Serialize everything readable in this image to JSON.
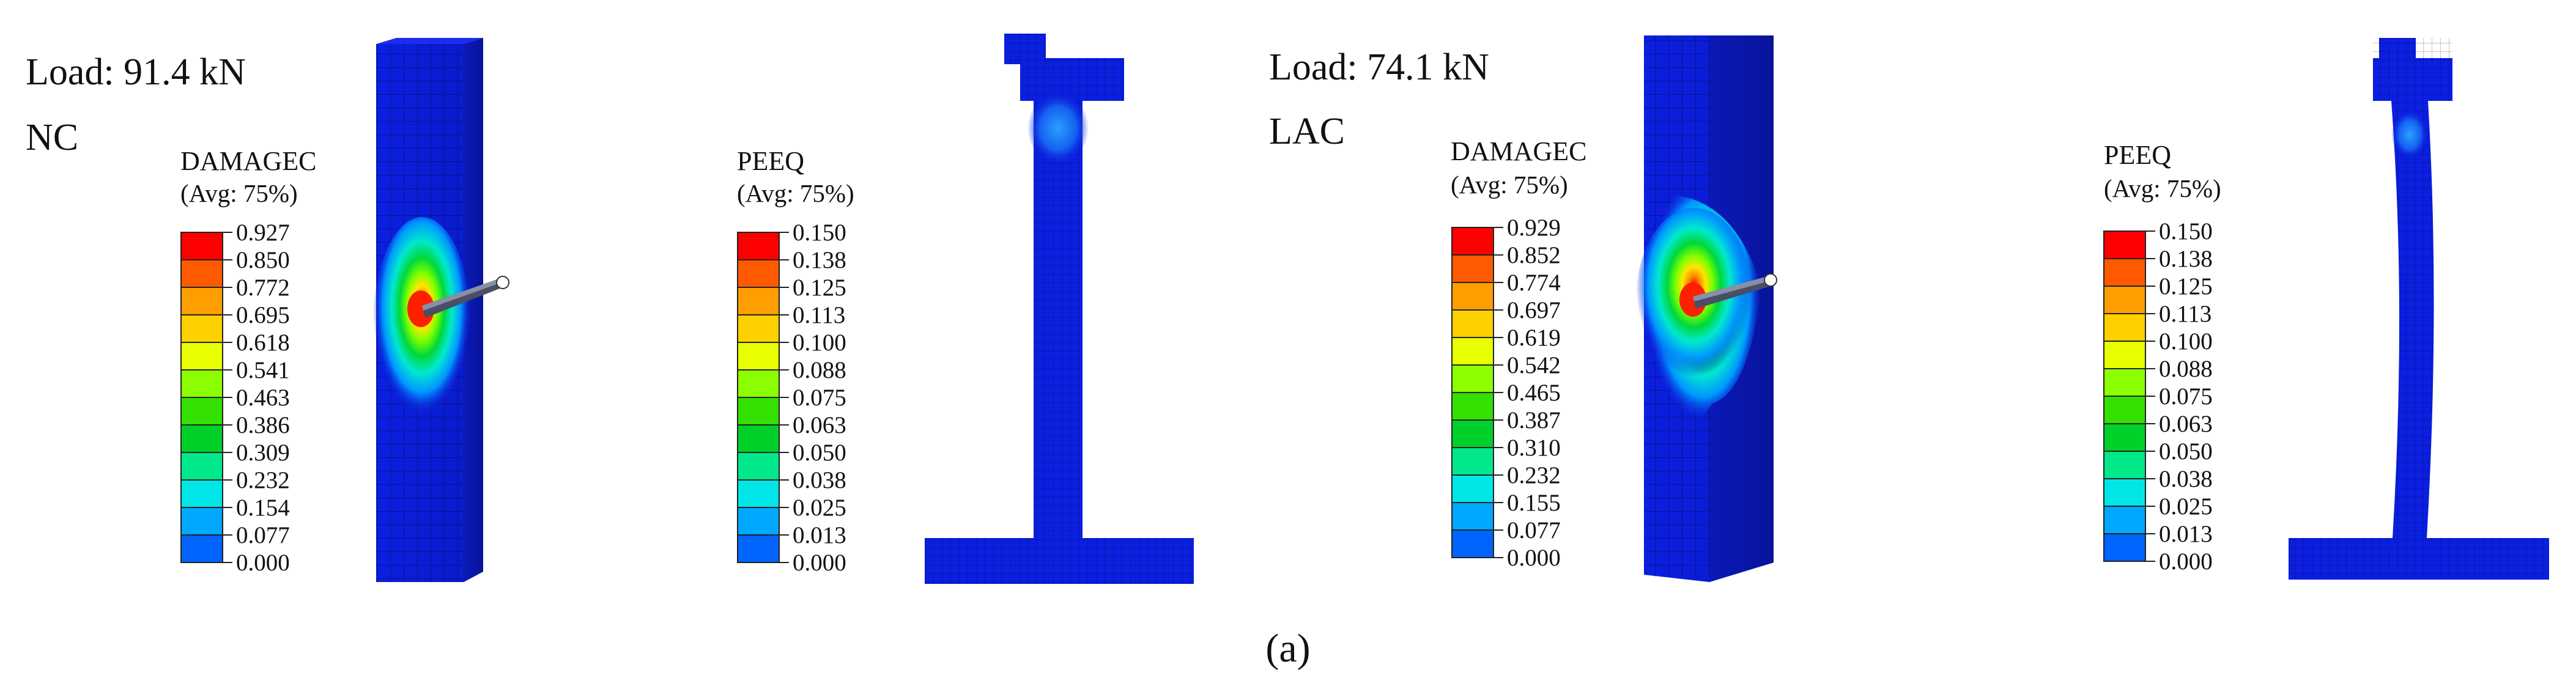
{
  "figure": {
    "caption": "(a)",
    "panels": [
      {
        "load_text": "Load: 91.4 kN",
        "material": "NC",
        "damage_legend": {
          "title": "DAMAGEC",
          "subtitle": "(Avg: 75%)",
          "values": [
            "0.927",
            "0.850",
            "0.772",
            "0.695",
            "0.618",
            "0.541",
            "0.463",
            "0.386",
            "0.309",
            "0.232",
            "0.154",
            "0.077",
            "0.000"
          ]
        },
        "peeq_legend": {
          "title": "PEEQ",
          "subtitle": "(Avg: 75%)",
          "values": [
            "0.150",
            "0.138",
            "0.125",
            "0.113",
            "0.100",
            "0.088",
            "0.075",
            "0.063",
            "0.050",
            "0.038",
            "0.025",
            "0.013",
            "0.000"
          ]
        }
      },
      {
        "load_text": "Load: 74.1 kN",
        "material": "LAC",
        "damage_legend": {
          "title": "DAMAGEC",
          "subtitle": "(Avg: 75%)",
          "values": [
            "0.929",
            "0.852",
            "0.774",
            "0.697",
            "0.619",
            "0.542",
            "0.465",
            "0.387",
            "0.310",
            "0.232",
            "0.155",
            "0.077",
            "0.000"
          ]
        },
        "peeq_legend": {
          "title": "PEEQ",
          "subtitle": "(Avg: 75%)",
          "values": [
            "0.150",
            "0.138",
            "0.125",
            "0.113",
            "0.100",
            "0.088",
            "0.075",
            "0.063",
            "0.050",
            "0.038",
            "0.025",
            "0.013",
            "0.000"
          ]
        }
      }
    ]
  },
  "colors": {
    "model_blue": "#0b1fe0",
    "legend_bands": [
      "#ff0000",
      "#ff5a00",
      "#ff9e00",
      "#ffd000",
      "#e8ff00",
      "#8cff00",
      "#33e000",
      "#00d02a",
      "#00e88a",
      "#00e6e6",
      "#00a8ff",
      "#0064ff",
      "#0018ff"
    ]
  }
}
